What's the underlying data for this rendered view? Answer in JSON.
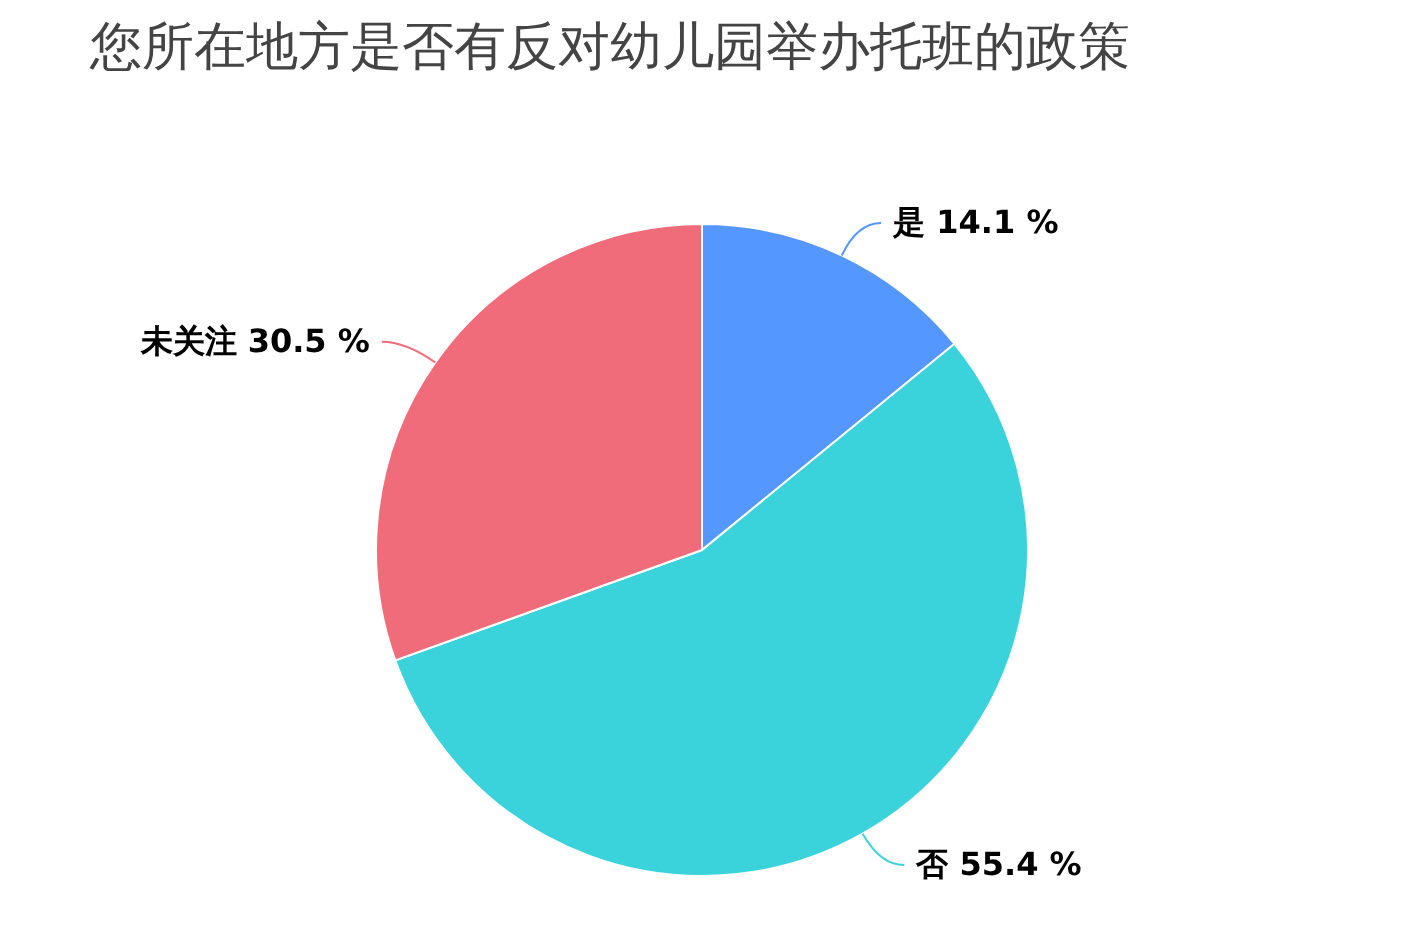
{
  "chart_data": {
    "type": "pie",
    "title": "您所在地方是否有反对幼儿园举办托班的政策",
    "categories": [
      "是",
      "否",
      "未关注"
    ],
    "values": [
      14.1,
      55.4,
      30.5
    ],
    "colors": [
      "#5397ff",
      "#3bd3db",
      "#f06c7a"
    ],
    "value_labels": [
      "14.1 %",
      "55.4 %",
      "30.5 %"
    ],
    "legend": false
  }
}
